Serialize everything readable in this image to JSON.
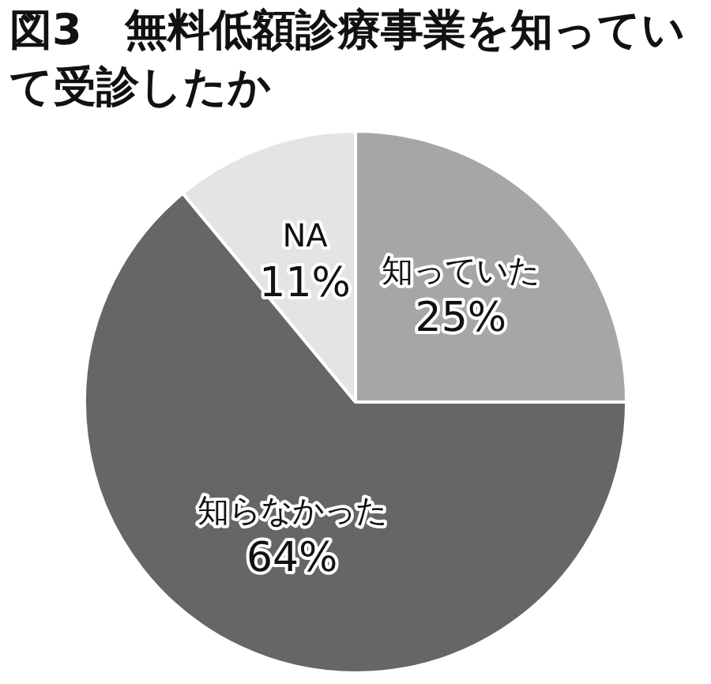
{
  "chart_data": {
    "type": "pie",
    "title": "図3　無料低額診療事業を知っていて受診したか",
    "categories": [
      "知っていた",
      "知らなかった",
      "NA"
    ],
    "values": [
      25,
      64,
      11
    ],
    "colors": [
      "#a6a6a6",
      "#666666",
      "#e4e4e4"
    ],
    "value_labels": [
      "25%",
      "64%",
      "11%"
    ],
    "legend": false
  }
}
